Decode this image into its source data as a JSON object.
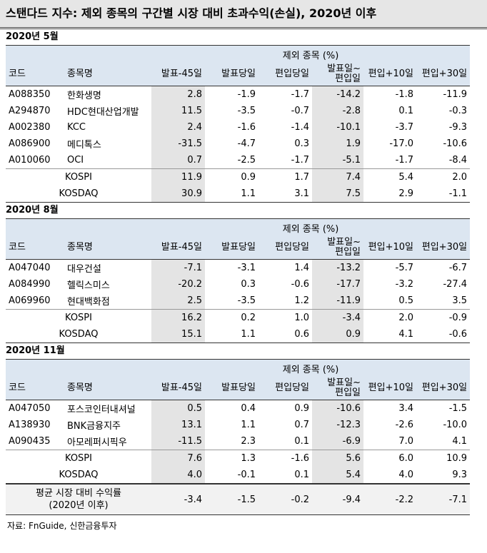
{
  "title": "스탠다드 지수: 제외 종목의 구간별 시장 대비 초과수익(손실), 2020년 이후",
  "columns": [
    "코드",
    "종목명",
    "발표-45일",
    "발표당일",
    "편입당일",
    [
      "발표일~",
      "편입일"
    ],
    "편입+10일",
    "편입+30일"
  ],
  "sections": [
    {
      "label": "2020년 5월",
      "group_header": "제외 종목 (%)",
      "rows": [
        [
          "A088350",
          "한화생명",
          "2.8",
          "-1.9",
          "-1.7",
          "-14.2",
          "-1.8",
          "-11.9"
        ],
        [
          "A294870",
          "HDC현대산업개발",
          "11.5",
          "-3.5",
          "-0.7",
          "-2.8",
          "0.1",
          "-0.3"
        ],
        [
          "A002380",
          "KCC",
          "2.4",
          "-1.6",
          "-1.4",
          "-10.1",
          "-3.7",
          "-9.3"
        ],
        [
          "A086900",
          "메디톡스",
          "-31.5",
          "-4.7",
          "0.3",
          "1.9",
          "-17.0",
          "-10.6"
        ],
        [
          "A010060",
          "OCI",
          "0.7",
          "-2.5",
          "-1.7",
          "-5.1",
          "-1.7",
          "-8.4"
        ]
      ],
      "index_rows": [
        [
          "KOSPI",
          "11.9",
          "0.9",
          "1.7",
          "7.4",
          "5.4",
          "2.0"
        ],
        [
          "KOSDAQ",
          "30.9",
          "1.1",
          "3.1",
          "7.5",
          "2.9",
          "-1.1"
        ]
      ]
    },
    {
      "label": "2020년 8월",
      "group_header": "제외 종목 (%)",
      "rows": [
        [
          "A047040",
          "대우건설",
          "-7.1",
          "-3.1",
          "1.4",
          "-13.2",
          "-5.7",
          "-6.7"
        ],
        [
          "A084990",
          "헬릭스미스",
          "-20.2",
          "0.3",
          "-0.6",
          "-17.7",
          "-3.2",
          "-27.4"
        ],
        [
          "A069960",
          "현대백화점",
          "2.5",
          "-3.5",
          "1.2",
          "-11.9",
          "0.5",
          "3.5"
        ]
      ],
      "index_rows": [
        [
          "KOSPI",
          "16.2",
          "0.2",
          "1.0",
          "-3.4",
          "2.0",
          "-0.9"
        ],
        [
          "KOSDAQ",
          "15.1",
          "1.1",
          "0.6",
          "0.9",
          "4.1",
          "-0.6"
        ]
      ]
    },
    {
      "label": "2020년 11월",
      "group_header": "제외 종목 (%)",
      "rows": [
        [
          "A047050",
          "포스코인터내셔널",
          "0.5",
          "0.4",
          "0.9",
          "-10.6",
          "3.4",
          "-1.5"
        ],
        [
          "A138930",
          "BNK금융지주",
          "13.1",
          "1.1",
          "0.7",
          "-12.3",
          "-2.6",
          "-10.0"
        ],
        [
          "A090435",
          "아모레퍼시픽우",
          "-11.5",
          "2.3",
          "0.1",
          "-6.9",
          "7.0",
          "4.1"
        ]
      ],
      "index_rows": [
        [
          "KOSPI",
          "7.6",
          "1.3",
          "-1.6",
          "5.6",
          "6.0",
          "10.9"
        ],
        [
          "KOSDAQ",
          "4.0",
          "-0.1",
          "0.1",
          "5.4",
          "4.0",
          "9.3"
        ]
      ]
    }
  ],
  "average": {
    "label_lines": [
      "평균 시장 대비 수익률",
      "(2020년 이후)"
    ],
    "values": [
      "-3.4",
      "-1.5",
      "-0.2",
      "-9.4",
      "-2.2",
      "-7.1"
    ]
  },
  "source": "자료: FnGuide, 신한금융투자"
}
